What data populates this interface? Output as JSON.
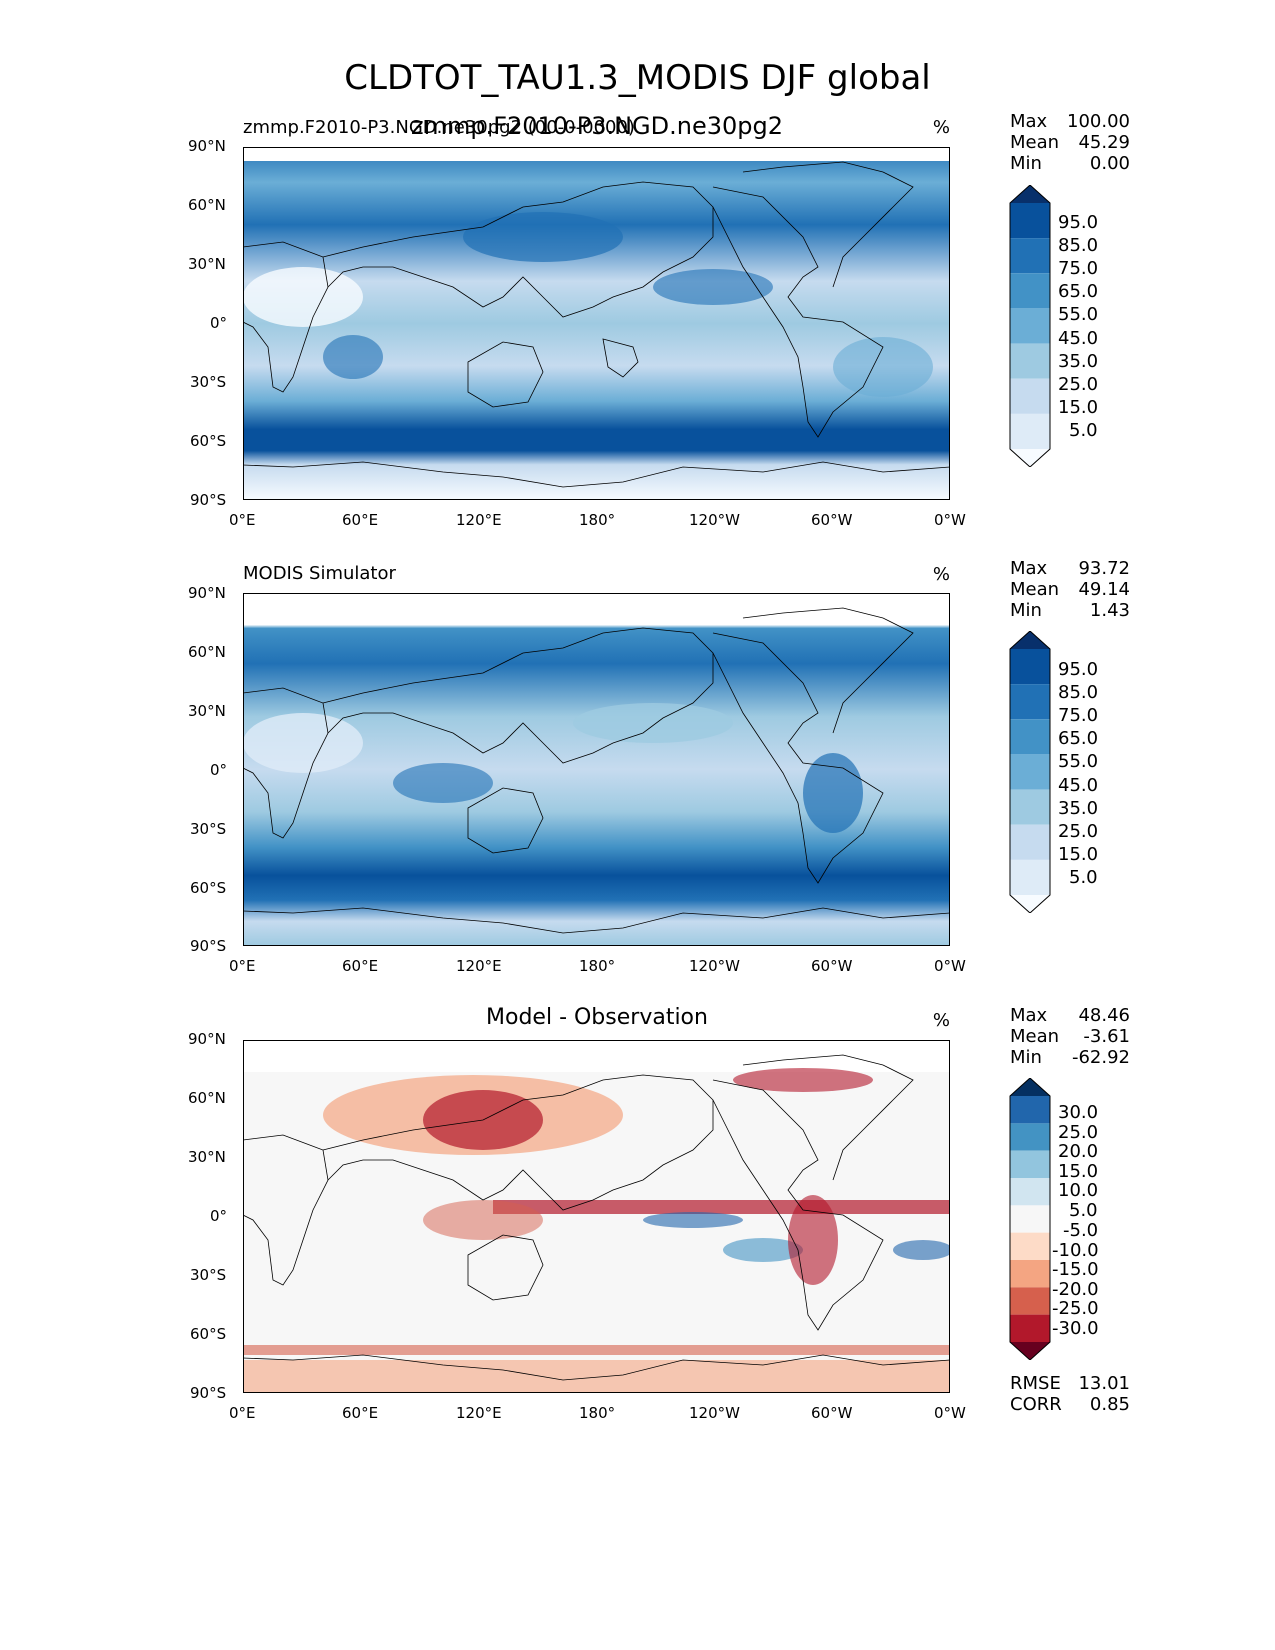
{
  "title": "CLDTOT_TAU1.3_MODIS DJF global",
  "panels": [
    {
      "subtitle_left": "zmmp.F2010-P3.NGD.ne30pg2 (00-0-0000)",
      "subtitle_center": "zmmp.F2010-P3.NGD.ne30pg2",
      "unit": "%",
      "stats": {
        "max_label": "Max",
        "max": "100.00",
        "mean_label": "Mean",
        "mean": "45.29",
        "min_label": "Min",
        "min": "0.00"
      },
      "colorbar": {
        "ticks": [
          "95.0",
          "85.0",
          "75.0",
          "65.0",
          "55.0",
          "45.0",
          "35.0",
          "25.0",
          "15.0",
          "5.0"
        ]
      }
    },
    {
      "subtitle_left": "MODIS Simulator",
      "subtitle_center": "",
      "unit": "%",
      "stats": {
        "max_label": "Max",
        "max": "93.72",
        "mean_label": "Mean",
        "mean": "49.14",
        "min_label": "Min",
        "min": "1.43"
      },
      "colorbar": {
        "ticks": [
          "95.0",
          "85.0",
          "75.0",
          "65.0",
          "55.0",
          "45.0",
          "35.0",
          "25.0",
          "15.0",
          "5.0"
        ]
      }
    },
    {
      "subtitle_left": "",
      "subtitle_center": "Model - Observation",
      "unit": "%",
      "stats": {
        "max_label": "Max",
        "max": "48.46",
        "mean_label": "Mean",
        "mean": "-3.61",
        "min_label": "Min",
        "min": "-62.92"
      },
      "colorbar": {
        "ticks": [
          "30.0",
          "25.0",
          "20.0",
          "15.0",
          "10.0",
          "5.0",
          "-5.0",
          "-10.0",
          "-15.0",
          "-20.0",
          "-25.0",
          "-30.0"
        ]
      },
      "metrics": {
        "rmse_label": "RMSE",
        "rmse": "13.01",
        "corr_label": "CORR",
        "corr": "0.85"
      }
    }
  ],
  "axes": {
    "lat_ticks": [
      "90°N",
      "60°N",
      "30°N",
      "0°",
      "30°S",
      "60°S",
      "90°S"
    ],
    "lon_ticks": [
      "0°E",
      "60°E",
      "120°E",
      "180°",
      "120°W",
      "60°W",
      "0°W"
    ]
  },
  "colors": {
    "seq": [
      "#f7fbff",
      "#deebf7",
      "#c6dbef",
      "#9ecae1",
      "#6baed6",
      "#4292c6",
      "#2171b5",
      "#08519c",
      "#08306b"
    ],
    "div": [
      "#67001f",
      "#b2182b",
      "#d6604d",
      "#f4a582",
      "#fddbc7",
      "#f7f7f7",
      "#d1e5f0",
      "#92c5de",
      "#4393c3",
      "#2166ac",
      "#053061"
    ]
  },
  "chart_data": {
    "type": "heatmap",
    "title": "CLDTOT_TAU1.3_MODIS DJF global",
    "projection": "PlateCarree",
    "lon_ticks": [
      "0°E",
      "60°E",
      "120°E",
      "180°",
      "120°W",
      "60°W",
      "0°W"
    ],
    "lat_ticks": [
      "90°N",
      "60°N",
      "30°N",
      "0°",
      "30°S",
      "60°S",
      "90°S"
    ],
    "unit": "%",
    "panels": [
      {
        "name": "zmmp.F2010-P3.NGD.ne30pg2",
        "max": 100.0,
        "mean": 45.29,
        "min": 0.0,
        "levels": [
          0,
          5,
          15,
          25,
          35,
          45,
          55,
          65,
          75,
          85,
          95,
          100
        ]
      },
      {
        "name": "MODIS Simulator",
        "max": 93.72,
        "mean": 49.14,
        "min": 1.43,
        "levels": [
          0,
          5,
          15,
          25,
          35,
          45,
          55,
          65,
          75,
          85,
          95,
          100
        ]
      },
      {
        "name": "Model - Observation",
        "max": 48.46,
        "mean": -3.61,
        "min": -62.92,
        "rmse": 13.01,
        "corr": 0.85,
        "levels": [
          -30,
          -25,
          -20,
          -15,
          -10,
          -5,
          5,
          10,
          15,
          20,
          25,
          30
        ]
      }
    ]
  }
}
